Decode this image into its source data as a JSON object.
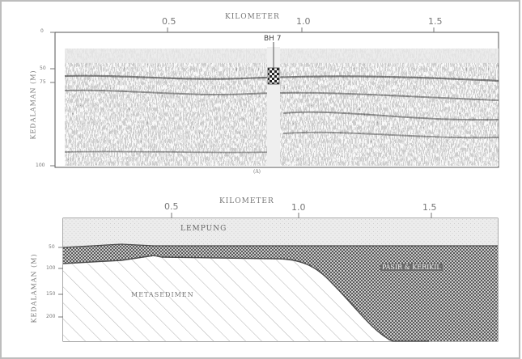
{
  "top_panel": {
    "axis_title": "KILOMETER",
    "x_ticks": [
      "0.5",
      "1.0",
      "1.5"
    ],
    "y_axis_label": "KEDALAMAN (M)",
    "y_ticks": [
      "0",
      "50",
      "75",
      "100"
    ],
    "borehole_label": "BH 7",
    "caption": "(A)"
  },
  "bottom_panel": {
    "axis_title": "KILOMETER",
    "x_ticks": [
      "0.5",
      "1.0",
      "1.5"
    ],
    "y_axis_label": "KEDALAMAN (M)",
    "y_ticks": [
      "50",
      "100",
      "150",
      "200"
    ],
    "layers": {
      "clay": "LEMPUNG",
      "sand_gravel": "PASIR & KERIKIL",
      "metasediment": "METASEDIMEN"
    }
  },
  "colors": {
    "clay_fill": "#e6e6e6",
    "sand_fill": "#8a8a8a",
    "meta_stroke": "#9a9a9a",
    "line": "#4a4a4a"
  }
}
